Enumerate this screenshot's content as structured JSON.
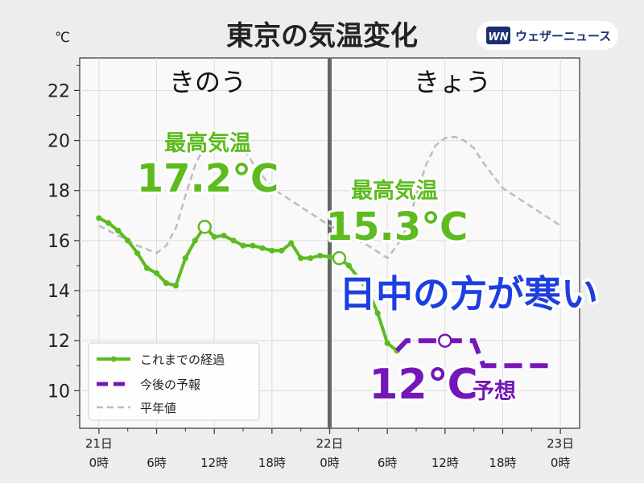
{
  "title": "東京の気温変化",
  "unit": "℃",
  "logo": {
    "brand": "ウェザーニュース",
    "mark": "WN"
  },
  "colors": {
    "observed": "#5dbb1e",
    "forecast": "#7416b8",
    "normal": "#bdbdbd",
    "headline": "#1d3fe0",
    "divider": "#666666"
  },
  "day_labels": {
    "yesterday": "きのう",
    "today": "きょう"
  },
  "annotations": {
    "max_label": "最高気温",
    "yesterday_max": "17.2℃",
    "today_max": "15.3℃",
    "headline": "日中の方が寒い",
    "forecast_value": "12℃",
    "forecast_word": "予想"
  },
  "legend": {
    "observed": "これまでの経過",
    "forecast": "今後の予報",
    "normal": "平年値"
  },
  "chart_data": {
    "type": "line",
    "title": "東京の気温変化",
    "ylabel": "℃",
    "ylim": [
      8.5,
      23.3
    ],
    "xlim": [
      -2,
      50
    ],
    "yticks": [
      10,
      12,
      14,
      16,
      18,
      20,
      22
    ],
    "xticks": [
      {
        "x": 0,
        "line1": "21日",
        "line2": "0時"
      },
      {
        "x": 6,
        "line1": "",
        "line2": "6時"
      },
      {
        "x": 12,
        "line1": "",
        "line2": "12時"
      },
      {
        "x": 18,
        "line1": "",
        "line2": "18時"
      },
      {
        "x": 24,
        "line1": "22日",
        "line2": "0時"
      },
      {
        "x": 30,
        "line1": "",
        "line2": "6時"
      },
      {
        "x": 36,
        "line1": "",
        "line2": "12時"
      },
      {
        "x": 42,
        "line1": "",
        "line2": "18時"
      },
      {
        "x": 48,
        "line1": "23日",
        "line2": "0時"
      }
    ],
    "grid": true,
    "legend_position": "bottom-left",
    "divider_x": 24,
    "series": [
      {
        "name": "これまでの経過",
        "style": "solid-markers",
        "points": [
          [
            0,
            16.9
          ],
          [
            1,
            16.7
          ],
          [
            2,
            16.4
          ],
          [
            3,
            16.0
          ],
          [
            4,
            15.5
          ],
          [
            5,
            14.9
          ],
          [
            6,
            14.7
          ],
          [
            7,
            14.3
          ],
          [
            8,
            14.2
          ],
          [
            9,
            15.3
          ],
          [
            10,
            16.0
          ],
          [
            11,
            16.55
          ],
          [
            12,
            16.15
          ],
          [
            13,
            16.2
          ],
          [
            14,
            16.0
          ],
          [
            15,
            15.8
          ],
          [
            16,
            15.8
          ],
          [
            17,
            15.7
          ],
          [
            18,
            15.6
          ],
          [
            19,
            15.6
          ],
          [
            20,
            15.9
          ],
          [
            21,
            15.3
          ],
          [
            22,
            15.3
          ],
          [
            23,
            15.4
          ],
          [
            24,
            15.35
          ],
          [
            25,
            15.3
          ],
          [
            26,
            15.0
          ],
          [
            27,
            14.5
          ],
          [
            28,
            14.0
          ],
          [
            29,
            13.1
          ],
          [
            30,
            11.9
          ],
          [
            31,
            11.6
          ]
        ]
      },
      {
        "name": "今後の予報",
        "style": "dashed",
        "points": [
          [
            31,
            11.6
          ],
          [
            32,
            12.0
          ],
          [
            33,
            12.0
          ],
          [
            34,
            12.0
          ],
          [
            35,
            12.0
          ],
          [
            36,
            12.0
          ],
          [
            37,
            12.0
          ],
          [
            38,
            12.0
          ],
          [
            39,
            12.0
          ],
          [
            40,
            11.0
          ],
          [
            41,
            11.0
          ],
          [
            42,
            11.0
          ],
          [
            43,
            11.0
          ],
          [
            44,
            11.0
          ],
          [
            45,
            11.0
          ],
          [
            46,
            11.0
          ],
          [
            47,
            11.0
          ]
        ]
      },
      {
        "name": "平年値",
        "style": "dashed-thin",
        "points": [
          [
            0,
            16.6
          ],
          [
            2,
            16.2
          ],
          [
            4,
            15.8
          ],
          [
            6,
            15.5
          ],
          [
            7,
            15.8
          ],
          [
            8,
            16.5
          ],
          [
            9,
            17.8
          ],
          [
            10,
            19.0
          ],
          [
            11,
            19.8
          ],
          [
            12,
            20.1
          ],
          [
            13,
            20.15
          ],
          [
            14,
            20.0
          ],
          [
            15,
            19.7
          ],
          [
            16,
            19.1
          ],
          [
            17,
            18.6
          ],
          [
            18,
            18.1
          ],
          [
            20,
            17.6
          ],
          [
            22,
            17.1
          ],
          [
            24,
            16.6
          ],
          [
            26,
            16.2
          ],
          [
            28,
            15.8
          ],
          [
            30,
            15.3
          ],
          [
            31,
            15.8
          ],
          [
            32,
            16.5
          ],
          [
            33,
            17.8
          ],
          [
            34,
            19.0
          ],
          [
            35,
            19.8
          ],
          [
            36,
            20.1
          ],
          [
            37,
            20.15
          ],
          [
            38,
            20.0
          ],
          [
            39,
            19.7
          ],
          [
            40,
            19.1
          ],
          [
            41,
            18.6
          ],
          [
            42,
            18.1
          ],
          [
            44,
            17.6
          ],
          [
            46,
            17.1
          ],
          [
            48,
            16.6
          ]
        ]
      }
    ],
    "highlights": [
      {
        "series": "これまでの経過",
        "x": 11,
        "y": 16.55,
        "label": "17.2℃"
      },
      {
        "series": "これまでの経過",
        "x": 25,
        "y": 15.3,
        "label": "15.3℃"
      },
      {
        "series": "今後の予報",
        "x": 36,
        "y": 12.0,
        "label": "12℃"
      }
    ]
  }
}
